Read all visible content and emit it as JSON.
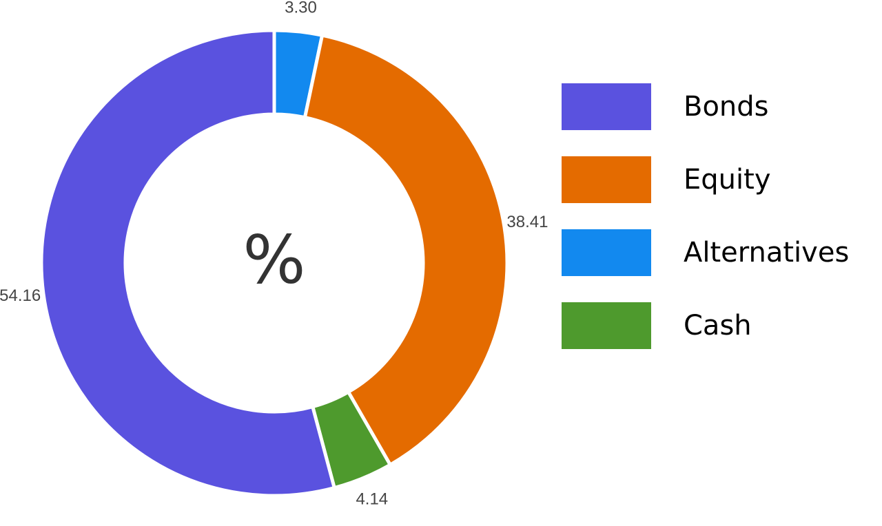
{
  "chart_data": {
    "type": "pie",
    "donut": true,
    "center_label": "%",
    "categories": [
      "Alternatives",
      "Equity",
      "Cash",
      "Bonds"
    ],
    "values": [
      3.3,
      38.41,
      4.14,
      54.16
    ],
    "value_labels": [
      "3.30",
      "38.41",
      "4.14",
      "54.16"
    ],
    "colors": [
      "#1289EF",
      "#E46B00",
      "#4E9A2D",
      "#5A52DF"
    ],
    "legend": {
      "placement": "right",
      "items": [
        {
          "label": "Bonds",
          "color": "#5A52DF"
        },
        {
          "label": "Equity",
          "color": "#E46B00"
        },
        {
          "label": "Alternatives",
          "color": "#1289EF"
        },
        {
          "label": "Cash",
          "color": "#4E9A2D"
        }
      ]
    }
  }
}
